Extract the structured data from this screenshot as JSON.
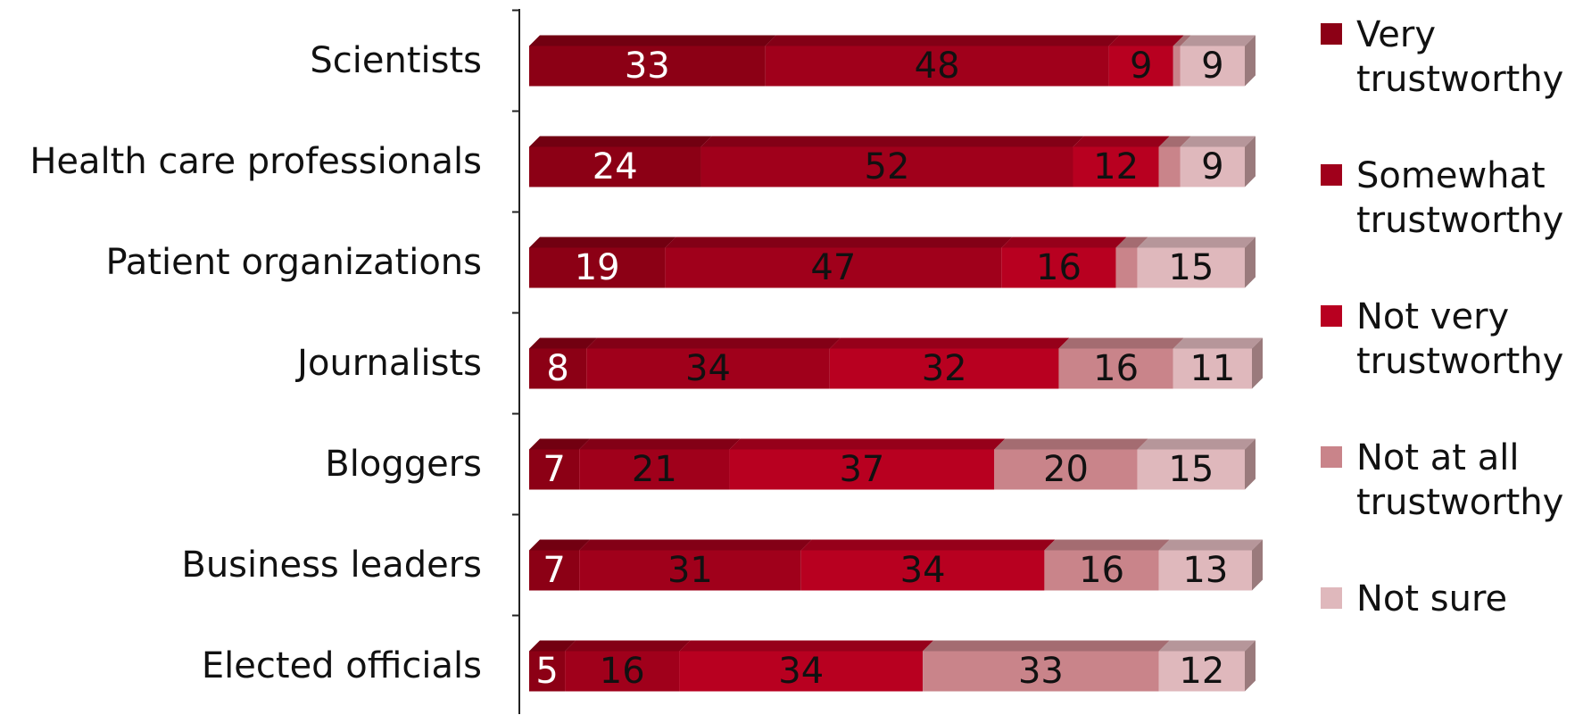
{
  "chart_data": {
    "type": "bar",
    "orientation": "horizontal",
    "stacked": true,
    "categories": [
      "Scientists",
      "Health care professionals",
      "Patient organizations",
      "Journalists",
      "Bloggers",
      "Business leaders",
      "Elected officials"
    ],
    "series": [
      {
        "name": "Very trustworthy",
        "color": "#8c0015",
        "values": [
          33,
          24,
          19,
          8,
          7,
          7,
          5
        ]
      },
      {
        "name": "Somewhat trustworthy",
        "color": "#a0001b",
        "values": [
          48,
          52,
          47,
          34,
          21,
          31,
          16
        ]
      },
      {
        "name": "Not very trustworthy",
        "color": "#b80020",
        "values": [
          9,
          12,
          16,
          32,
          37,
          34,
          34
        ]
      },
      {
        "name": "Not at all trustworthy",
        "color": "#c9848a",
        "values": [
          1,
          3,
          3,
          16,
          20,
          16,
          33
        ],
        "value_labels": [
          null,
          null,
          null,
          "16",
          "20",
          "16",
          "33"
        ]
      },
      {
        "name": "Not sure",
        "color": "#dfb8bc",
        "values": [
          9,
          9,
          15,
          11,
          15,
          13,
          12
        ]
      }
    ]
  }
}
